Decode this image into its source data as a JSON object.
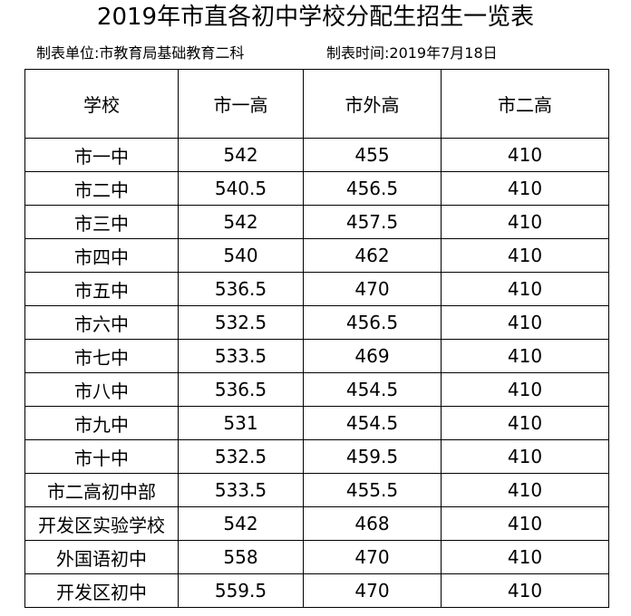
{
  "header": {
    "title": "2019年市直各初中学校分配生招生一览表",
    "unit": "制表单位:市教育局基础教育二科",
    "date": "制表时间:2019年7月18日"
  },
  "table": {
    "columns": [
      "学校",
      "市一高",
      "市外高",
      "市二高"
    ],
    "rows": [
      [
        "市一中",
        "542",
        "455",
        "410"
      ],
      [
        "市二中",
        "540.5",
        "456.5",
        "410"
      ],
      [
        "市三中",
        "542",
        "457.5",
        "410"
      ],
      [
        "市四中",
        "540",
        "462",
        "410"
      ],
      [
        "市五中",
        "536.5",
        "470",
        "410"
      ],
      [
        "市六中",
        "532.5",
        "456.5",
        "410"
      ],
      [
        "市七中",
        "533.5",
        "469",
        "410"
      ],
      [
        "市八中",
        "536.5",
        "454.5",
        "410"
      ],
      [
        "市九中",
        "531",
        "454.5",
        "410"
      ],
      [
        "市十中",
        "532.5",
        "459.5",
        "410"
      ],
      [
        "市二高初中部",
        "533.5",
        "455.5",
        "410"
      ],
      [
        "开发区实验学校",
        "542",
        "468",
        "410"
      ],
      [
        "外国语初中",
        "558",
        "470",
        "410"
      ],
      [
        "开发区初中",
        "559.5",
        "470",
        "410"
      ]
    ]
  }
}
